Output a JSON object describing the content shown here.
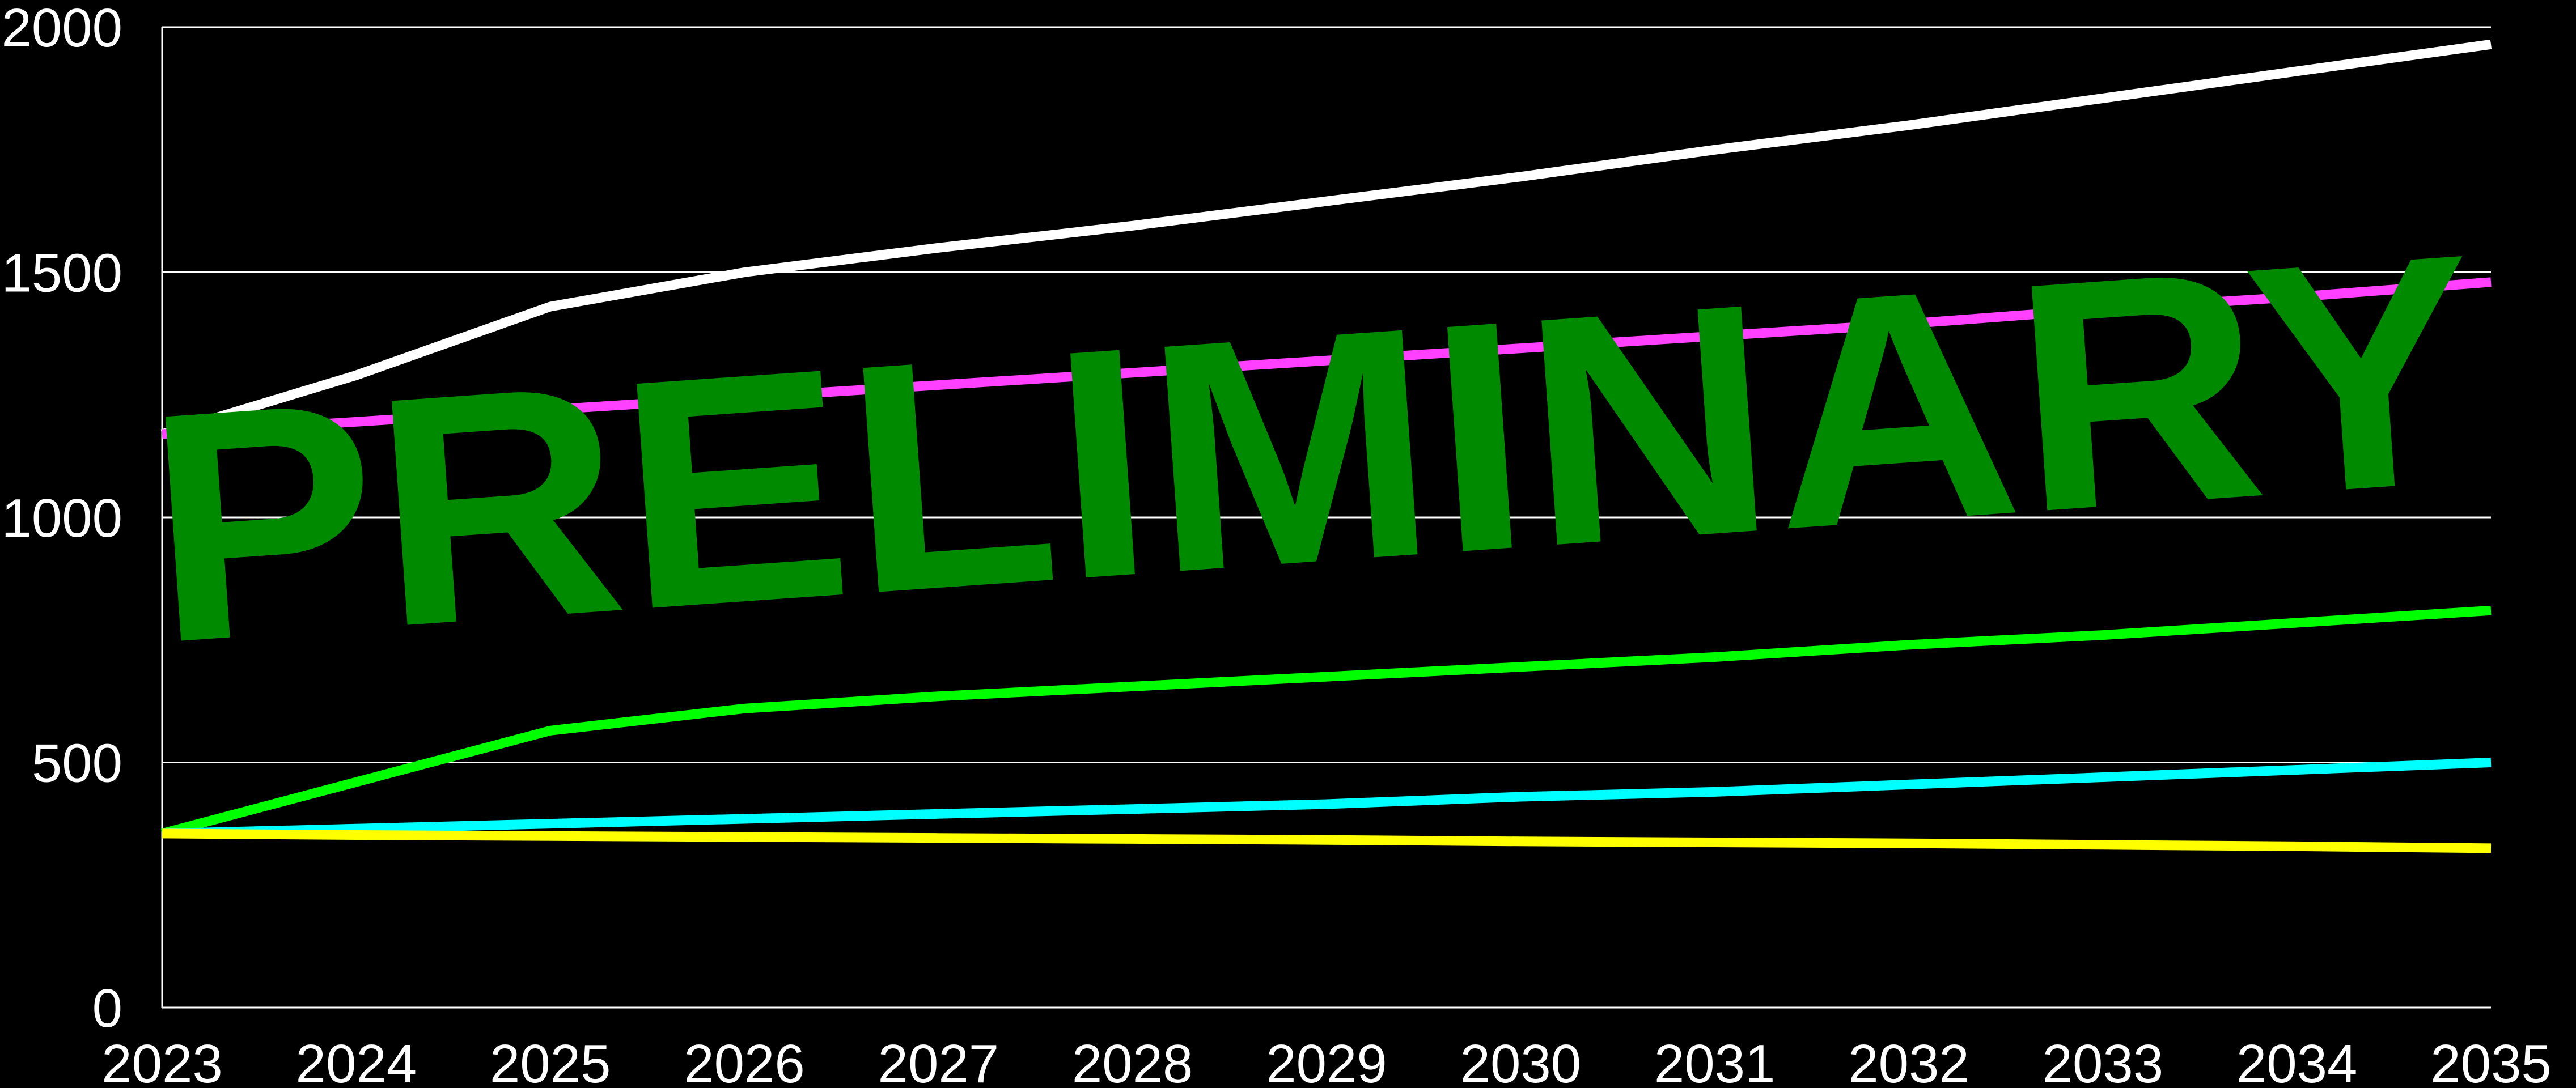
{
  "chart_data": {
    "type": "line",
    "title": "",
    "xlabel": "",
    "ylabel": "",
    "x": [
      "2023",
      "2024",
      "2025",
      "2026",
      "2027",
      "2028",
      "2029",
      "2030",
      "2031",
      "2032",
      "2033",
      "2034",
      "2035"
    ],
    "ylim": [
      0,
      2000
    ],
    "yticks": [
      0,
      500,
      1000,
      1500,
      2000
    ],
    "grid": "horizontal",
    "legend": "none",
    "series": [
      {
        "color": "#ffffff",
        "values": [
          1170,
          1290,
          1430,
          1500,
          1550,
          1595,
          1645,
          1695,
          1750,
          1800,
          1855,
          1910,
          1965
        ]
      },
      {
        "color": "#ff40ff",
        "values": [
          1170,
          1195,
          1220,
          1245,
          1270,
          1295,
          1320,
          1345,
          1370,
          1395,
          1425,
          1450,
          1480
        ]
      },
      {
        "color": "#00ff00",
        "values": [
          355,
          460,
          565,
          610,
          635,
          655,
          675,
          695,
          715,
          740,
          760,
          785,
          810
        ]
      },
      {
        "color": "#00ffff",
        "values": [
          355,
          365,
          375,
          385,
          395,
          405,
          415,
          430,
          440,
          455,
          470,
          485,
          500
        ]
      },
      {
        "color": "#ffff00",
        "values": [
          355,
          352,
          350,
          348,
          346,
          344,
          342,
          339,
          337,
          335,
          332,
          329,
          325
        ]
      }
    ],
    "watermark": {
      "text": "PRELIMINARY",
      "color": "#008a00"
    }
  }
}
